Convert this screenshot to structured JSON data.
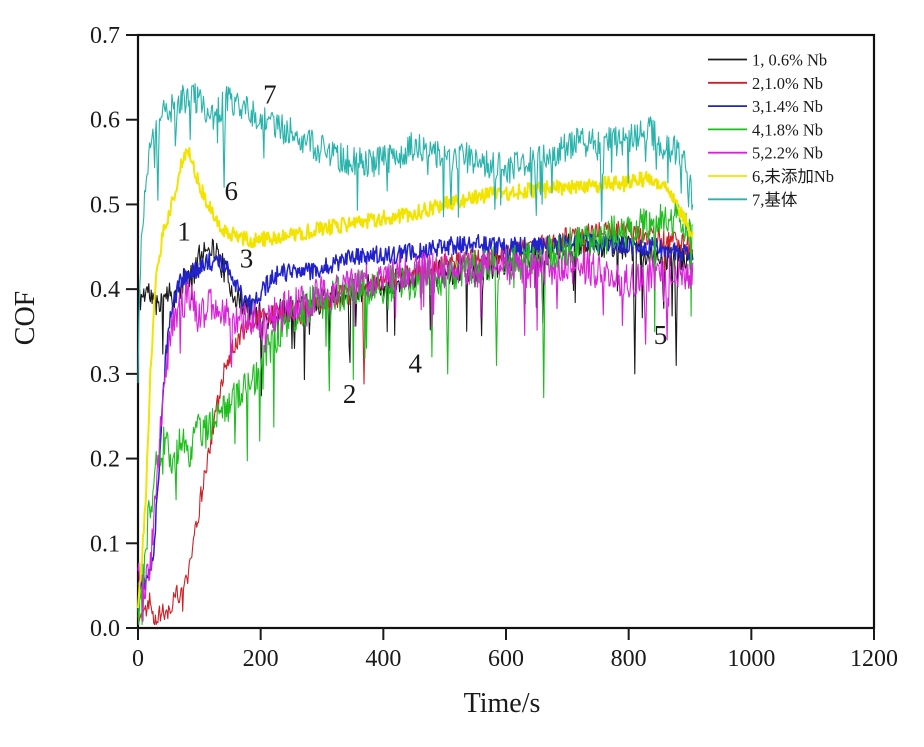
{
  "figure": {
    "background": "#ffffff",
    "border_color": "#111111"
  },
  "chart_data": {
    "type": "line",
    "title": "",
    "xlabel": "Time/s",
    "ylabel": "COF",
    "xlim": [
      0,
      1200
    ],
    "ylim": [
      0.0,
      0.7
    ],
    "x_ticks": [
      0,
      200,
      400,
      600,
      800,
      1000,
      1200
    ],
    "y_ticks": [
      0.0,
      0.1,
      0.2,
      0.3,
      0.4,
      0.5,
      0.6,
      0.7
    ],
    "grid": false,
    "legend_position": "top-right-inside",
    "annotations": [
      {
        "label": "7",
        "t": 215,
        "v": 0.63
      },
      {
        "label": "6",
        "t": 152,
        "v": 0.516
      },
      {
        "label": "1",
        "t": 75,
        "v": 0.468
      },
      {
        "label": "3",
        "t": 177,
        "v": 0.436
      },
      {
        "label": "2",
        "t": 345,
        "v": 0.276
      },
      {
        "label": "4",
        "t": 452,
        "v": 0.312
      },
      {
        "label": "5",
        "t": 852,
        "v": 0.346
      }
    ],
    "series": [
      {
        "name": "1, 0.6% Nb",
        "color": "#1a1a1a",
        "stroke_width": 1.1,
        "noise": 0.016,
        "spike_prob": 0.05,
        "spike_depth": 0.09,
        "seed": 11,
        "keypoints": [
          [
            0,
            0.385
          ],
          [
            15,
            0.4
          ],
          [
            30,
            0.38
          ],
          [
            45,
            0.4
          ],
          [
            60,
            0.39
          ],
          [
            75,
            0.41
          ],
          [
            90,
            0.42
          ],
          [
            105,
            0.445
          ],
          [
            115,
            0.455
          ],
          [
            130,
            0.44
          ],
          [
            145,
            0.415
          ],
          [
            160,
            0.39
          ],
          [
            180,
            0.375
          ],
          [
            200,
            0.37
          ],
          [
            215,
            0.365
          ],
          [
            235,
            0.375
          ],
          [
            260,
            0.38
          ],
          [
            290,
            0.385
          ],
          [
            320,
            0.39
          ],
          [
            360,
            0.4
          ],
          [
            400,
            0.405
          ],
          [
            450,
            0.415
          ],
          [
            500,
            0.42
          ],
          [
            550,
            0.425
          ],
          [
            600,
            0.43
          ],
          [
            650,
            0.44
          ],
          [
            700,
            0.45
          ],
          [
            745,
            0.455
          ],
          [
            790,
            0.45
          ],
          [
            840,
            0.44
          ],
          [
            905,
            0.435
          ]
        ],
        "spikes": [
          [
            255,
            0.33
          ],
          [
            560,
            0.345
          ],
          [
            660,
            0.36
          ],
          [
            810,
            0.3
          ],
          [
            878,
            0.31
          ]
        ]
      },
      {
        "name": "2,1.0% Nb",
        "color": "#cc2127",
        "stroke_width": 1.1,
        "noise": 0.013,
        "spike_prob": 0.02,
        "spike_depth": 0.05,
        "seed": 22,
        "keypoints": [
          [
            0,
            0.012
          ],
          [
            12,
            0.022
          ],
          [
            20,
            0.035
          ],
          [
            28,
            0.012
          ],
          [
            40,
            0.018
          ],
          [
            55,
            0.028
          ],
          [
            70,
            0.045
          ],
          [
            82,
            0.065
          ],
          [
            95,
            0.12
          ],
          [
            105,
            0.165
          ],
          [
            115,
            0.21
          ],
          [
            125,
            0.245
          ],
          [
            140,
            0.3
          ],
          [
            155,
            0.335
          ],
          [
            170,
            0.35
          ],
          [
            185,
            0.36
          ],
          [
            200,
            0.365
          ],
          [
            220,
            0.37
          ],
          [
            240,
            0.375
          ],
          [
            265,
            0.37
          ],
          [
            290,
            0.385
          ],
          [
            320,
            0.39
          ],
          [
            350,
            0.395
          ],
          [
            380,
            0.405
          ],
          [
            420,
            0.415
          ],
          [
            460,
            0.42
          ],
          [
            500,
            0.43
          ],
          [
            550,
            0.435
          ],
          [
            600,
            0.44
          ],
          [
            650,
            0.45
          ],
          [
            700,
            0.46
          ],
          [
            750,
            0.468
          ],
          [
            800,
            0.468
          ],
          [
            850,
            0.46
          ],
          [
            905,
            0.45
          ]
        ],
        "spikes": [
          [
            368,
            0.288
          ]
        ]
      },
      {
        "name": "3,1.4% Nb",
        "color": "#2222cc",
        "stroke_width": 1.5,
        "noise": 0.011,
        "spike_prob": 0.012,
        "spike_depth": 0.03,
        "seed": 33,
        "keypoints": [
          [
            0,
            0.05
          ],
          [
            15,
            0.055
          ],
          [
            25,
            0.08
          ],
          [
            35,
            0.2
          ],
          [
            45,
            0.32
          ],
          [
            55,
            0.38
          ],
          [
            70,
            0.41
          ],
          [
            90,
            0.42
          ],
          [
            110,
            0.43
          ],
          [
            130,
            0.435
          ],
          [
            150,
            0.42
          ],
          [
            170,
            0.39
          ],
          [
            188,
            0.38
          ],
          [
            205,
            0.4
          ],
          [
            220,
            0.415
          ],
          [
            240,
            0.42
          ],
          [
            270,
            0.42
          ],
          [
            300,
            0.425
          ],
          [
            340,
            0.435
          ],
          [
            380,
            0.44
          ],
          [
            420,
            0.44
          ],
          [
            460,
            0.445
          ],
          [
            500,
            0.45
          ],
          [
            550,
            0.455
          ],
          [
            600,
            0.45
          ],
          [
            650,
            0.45
          ],
          [
            700,
            0.455
          ],
          [
            750,
            0.455
          ],
          [
            800,
            0.45
          ],
          [
            850,
            0.45
          ],
          [
            905,
            0.44
          ]
        ],
        "spikes": []
      },
      {
        "name": "4,1.8% Nb",
        "color": "#1fbe1f",
        "stroke_width": 1.1,
        "noise": 0.022,
        "spike_prob": 0.04,
        "spike_depth": 0.11,
        "seed": 44,
        "keypoints": [
          [
            0,
            0.01
          ],
          [
            8,
            0.06
          ],
          [
            16,
            0.12
          ],
          [
            25,
            0.17
          ],
          [
            35,
            0.21
          ],
          [
            45,
            0.22
          ],
          [
            58,
            0.19
          ],
          [
            70,
            0.23
          ],
          [
            82,
            0.2
          ],
          [
            95,
            0.24
          ],
          [
            110,
            0.23
          ],
          [
            125,
            0.25
          ],
          [
            140,
            0.26
          ],
          [
            160,
            0.27
          ],
          [
            185,
            0.29
          ],
          [
            215,
            0.33
          ],
          [
            245,
            0.365
          ],
          [
            275,
            0.38
          ],
          [
            310,
            0.39
          ],
          [
            350,
            0.4
          ],
          [
            400,
            0.405
          ],
          [
            450,
            0.41
          ],
          [
            500,
            0.415
          ],
          [
            550,
            0.425
          ],
          [
            600,
            0.43
          ],
          [
            650,
            0.435
          ],
          [
            700,
            0.45
          ],
          [
            750,
            0.46
          ],
          [
            800,
            0.47
          ],
          [
            850,
            0.48
          ],
          [
            880,
            0.485
          ],
          [
            905,
            0.47
          ]
        ],
        "spikes": [
          [
            312,
            0.28
          ],
          [
            505,
            0.3
          ],
          [
            585,
            0.31
          ],
          [
            662,
            0.272
          ]
        ]
      },
      {
        "name": "5,2.2% Nb",
        "color": "#d922d9",
        "stroke_width": 1.1,
        "noise": 0.021,
        "spike_prob": 0.05,
        "spike_depth": 0.065,
        "seed": 55,
        "keypoints": [
          [
            0,
            0.07
          ],
          [
            12,
            0.05
          ],
          [
            22,
            0.09
          ],
          [
            32,
            0.18
          ],
          [
            42,
            0.29
          ],
          [
            55,
            0.355
          ],
          [
            70,
            0.385
          ],
          [
            85,
            0.39
          ],
          [
            100,
            0.365
          ],
          [
            115,
            0.38
          ],
          [
            130,
            0.385
          ],
          [
            145,
            0.37
          ],
          [
            165,
            0.36
          ],
          [
            185,
            0.365
          ],
          [
            205,
            0.36
          ],
          [
            230,
            0.375
          ],
          [
            255,
            0.38
          ],
          [
            285,
            0.39
          ],
          [
            315,
            0.4
          ],
          [
            350,
            0.405
          ],
          [
            390,
            0.415
          ],
          [
            430,
            0.42
          ],
          [
            470,
            0.425
          ],
          [
            510,
            0.43
          ],
          [
            550,
            0.42
          ],
          [
            590,
            0.43
          ],
          [
            630,
            0.42
          ],
          [
            670,
            0.425
          ],
          [
            710,
            0.43
          ],
          [
            750,
            0.42
          ],
          [
            790,
            0.41
          ],
          [
            830,
            0.415
          ],
          [
            870,
            0.42
          ],
          [
            905,
            0.42
          ]
        ],
        "spikes": [
          [
            828,
            0.335
          ],
          [
            862,
            0.34
          ]
        ]
      },
      {
        "name": "6,未添加Nb",
        "color": "#f2e400",
        "stroke_width": 2.0,
        "noise": 0.009,
        "spike_prob": 0.004,
        "spike_depth": 0.02,
        "seed": 66,
        "keypoints": [
          [
            0,
            0.03
          ],
          [
            6,
            0.08
          ],
          [
            12,
            0.14
          ],
          [
            20,
            0.3
          ],
          [
            30,
            0.42
          ],
          [
            42,
            0.47
          ],
          [
            55,
            0.5
          ],
          [
            68,
            0.54
          ],
          [
            80,
            0.565
          ],
          [
            90,
            0.545
          ],
          [
            105,
            0.515
          ],
          [
            120,
            0.49
          ],
          [
            140,
            0.47
          ],
          [
            160,
            0.462
          ],
          [
            185,
            0.458
          ],
          [
            215,
            0.46
          ],
          [
            250,
            0.465
          ],
          [
            290,
            0.47
          ],
          [
            330,
            0.475
          ],
          [
            370,
            0.48
          ],
          [
            410,
            0.485
          ],
          [
            450,
            0.49
          ],
          [
            500,
            0.5
          ],
          [
            560,
            0.51
          ],
          [
            620,
            0.515
          ],
          [
            680,
            0.52
          ],
          [
            740,
            0.522
          ],
          [
            790,
            0.527
          ],
          [
            830,
            0.53
          ],
          [
            862,
            0.52
          ],
          [
            885,
            0.49
          ],
          [
            905,
            0.462
          ]
        ],
        "spikes": []
      },
      {
        "name": "7,基体",
        "color": "#28b3ac",
        "stroke_width": 1.1,
        "noise": 0.018,
        "spike_prob": 0.06,
        "spike_depth": 0.055,
        "seed": 77,
        "keypoints": [
          [
            0,
            0.33
          ],
          [
            6,
            0.46
          ],
          [
            12,
            0.53
          ],
          [
            20,
            0.575
          ],
          [
            30,
            0.6
          ],
          [
            45,
            0.615
          ],
          [
            60,
            0.62
          ],
          [
            75,
            0.625
          ],
          [
            90,
            0.63
          ],
          [
            105,
            0.615
          ],
          [
            120,
            0.6
          ],
          [
            135,
            0.615
          ],
          [
            150,
            0.625
          ],
          [
            165,
            0.615
          ],
          [
            180,
            0.61
          ],
          [
            200,
            0.6
          ],
          [
            225,
            0.59
          ],
          [
            250,
            0.585
          ],
          [
            275,
            0.575
          ],
          [
            300,
            0.565
          ],
          [
            330,
            0.555
          ],
          [
            360,
            0.55
          ],
          [
            390,
            0.55
          ],
          [
            420,
            0.555
          ],
          [
            450,
            0.57
          ],
          [
            480,
            0.56
          ],
          [
            510,
            0.555
          ],
          [
            540,
            0.555
          ],
          [
            570,
            0.55
          ],
          [
            600,
            0.54
          ],
          [
            630,
            0.55
          ],
          [
            660,
            0.555
          ],
          [
            690,
            0.565
          ],
          [
            720,
            0.575
          ],
          [
            750,
            0.57
          ],
          [
            780,
            0.575
          ],
          [
            810,
            0.578
          ],
          [
            832,
            0.59
          ],
          [
            855,
            0.57
          ],
          [
            875,
            0.565
          ],
          [
            892,
            0.555
          ],
          [
            905,
            0.5
          ]
        ],
        "spikes": [
          [
            32,
            0.505
          ],
          [
            140,
            0.52
          ],
          [
            510,
            0.5
          ],
          [
            650,
            0.487
          ],
          [
            756,
            0.48
          ],
          [
            898,
            0.497
          ]
        ]
      }
    ]
  }
}
